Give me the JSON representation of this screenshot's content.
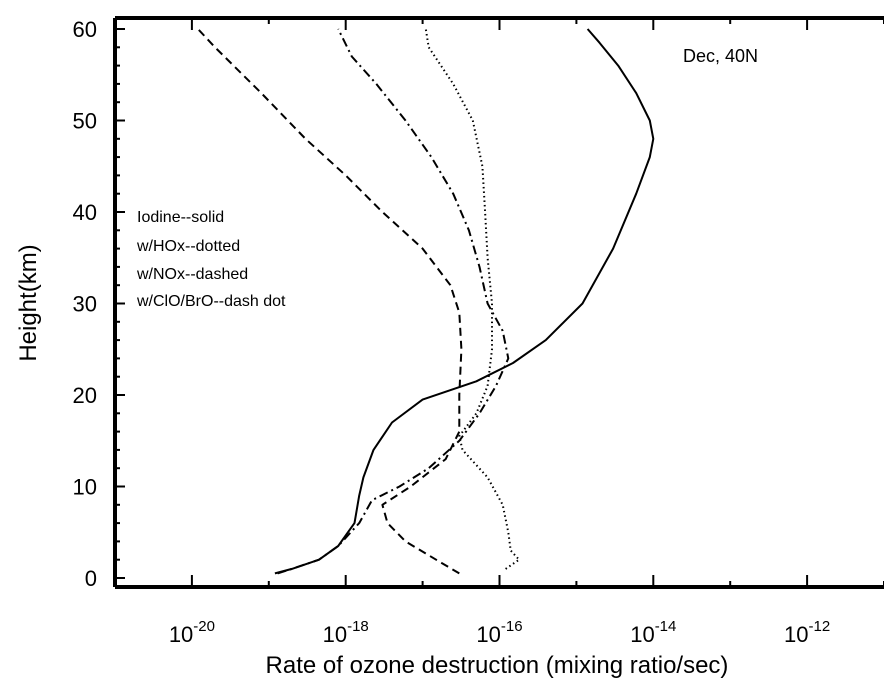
{
  "chart_data": {
    "type": "line",
    "title": "",
    "xlabel": "Rate of ozone destruction (mixing ratio/sec)",
    "ylabel": "Height(km)",
    "xscale": "log",
    "xlim": [
      1e-21,
      1e-11
    ],
    "ylim": [
      0,
      60
    ],
    "x_tick_labels": [
      {
        "value": 1e-20,
        "base": "10",
        "exp": "-20"
      },
      {
        "value": 1e-18,
        "base": "10",
        "exp": "-18"
      },
      {
        "value": 1e-16,
        "base": "10",
        "exp": "-16"
      },
      {
        "value": 1e-14,
        "base": "10",
        "exp": "-14"
      },
      {
        "value": 1e-12,
        "base": "10",
        "exp": "-12"
      }
    ],
    "y_ticks": [
      0,
      10,
      20,
      30,
      40,
      50,
      60
    ],
    "y_tick_labels": [
      "0",
      "10",
      "20",
      "30",
      "40",
      "50",
      "60"
    ],
    "annotation": "Dec, 40N",
    "legend": {
      "placement": "left-middle",
      "entries": [
        "Iodine--solid",
        "w/HOx--dotted",
        "w/NOx--dashed",
        "w/ClO/BrO--dash dot"
      ]
    },
    "series": [
      {
        "name": "Iodine--solid",
        "style": "solid",
        "color": "#000000",
        "points": [
          [
            1.2e-19,
            0.5
          ],
          [
            2e-19,
            1
          ],
          [
            4.5e-19,
            2
          ],
          [
            8e-19,
            3.5
          ],
          [
            1.3e-18,
            6
          ],
          [
            1.5e-18,
            9
          ],
          [
            1.7e-18,
            11
          ],
          [
            2.3e-18,
            14
          ],
          [
            4e-18,
            17
          ],
          [
            1e-17,
            19.5
          ],
          [
            5e-17,
            21.5
          ],
          [
            1.5e-16,
            23.5
          ],
          [
            4e-16,
            26
          ],
          [
            1.2e-15,
            30
          ],
          [
            3e-15,
            36
          ],
          [
            6e-15,
            42
          ],
          [
            9e-15,
            46
          ],
          [
            1e-14,
            48
          ],
          [
            9e-15,
            50
          ],
          [
            6e-15,
            53
          ],
          [
            3.5e-15,
            56
          ],
          [
            2e-15,
            58.5
          ],
          [
            1.4e-15,
            60
          ]
        ]
      },
      {
        "name": "w/HOx--dotted",
        "style": "dotted",
        "color": "#000000",
        "points": [
          [
            1.2e-16,
            1
          ],
          [
            1.8e-16,
            2
          ],
          [
            1.4e-16,
            3
          ],
          [
            1.3e-16,
            5
          ],
          [
            1.1e-16,
            8
          ],
          [
            7e-17,
            11
          ],
          [
            3.3e-17,
            14
          ],
          [
            3e-17,
            15.5
          ],
          [
            5e-17,
            18
          ],
          [
            7e-17,
            21
          ],
          [
            8e-17,
            25
          ],
          [
            8e-17,
            30
          ],
          [
            7e-17,
            35
          ],
          [
            6.5e-17,
            40
          ],
          [
            6e-17,
            45
          ],
          [
            4.5e-17,
            50
          ],
          [
            2.5e-17,
            54
          ],
          [
            1.2e-17,
            58
          ],
          [
            1.1e-17,
            60
          ]
        ]
      },
      {
        "name": "w/NOx--dashed",
        "style": "dashed",
        "color": "#000000",
        "points": [
          [
            3e-17,
            0.5
          ],
          [
            1.5e-17,
            2
          ],
          [
            6e-18,
            4
          ],
          [
            3.5e-18,
            6
          ],
          [
            3e-18,
            8
          ],
          [
            7e-18,
            10
          ],
          [
            2e-17,
            13
          ],
          [
            3e-17,
            16
          ],
          [
            3e-17,
            20
          ],
          [
            3.2e-17,
            25
          ],
          [
            3e-17,
            29
          ],
          [
            2.3e-17,
            32
          ],
          [
            1e-17,
            36
          ],
          [
            3e-18,
            40
          ],
          [
            1e-18,
            44
          ],
          [
            3e-19,
            48
          ],
          [
            8e-20,
            53
          ],
          [
            2e-20,
            58
          ],
          [
            1.2e-20,
            60
          ]
        ]
      },
      {
        "name": "w/ClO/BrO--dash dot",
        "style": "dashdot",
        "color": "#000000",
        "points": [
          [
            1.3e-19,
            0.5
          ],
          [
            2e-19,
            1
          ],
          [
            4.5e-19,
            2
          ],
          [
            8e-19,
            3.5
          ],
          [
            1.5e-18,
            6
          ],
          [
            2.2e-18,
            8.5
          ],
          [
            5e-18,
            10
          ],
          [
            1.2e-17,
            12
          ],
          [
            3e-17,
            15
          ],
          [
            5.5e-17,
            18
          ],
          [
            9e-17,
            21
          ],
          [
            1.3e-16,
            24
          ],
          [
            1.1e-16,
            27
          ],
          [
            7e-17,
            30
          ],
          [
            5.5e-17,
            34
          ],
          [
            4e-17,
            38
          ],
          [
            2.5e-17,
            42
          ],
          [
            1.3e-17,
            46
          ],
          [
            6e-18,
            50
          ],
          [
            2.5e-18,
            54
          ],
          [
            1.2e-18,
            57
          ],
          [
            8e-19,
            60
          ]
        ]
      }
    ]
  }
}
